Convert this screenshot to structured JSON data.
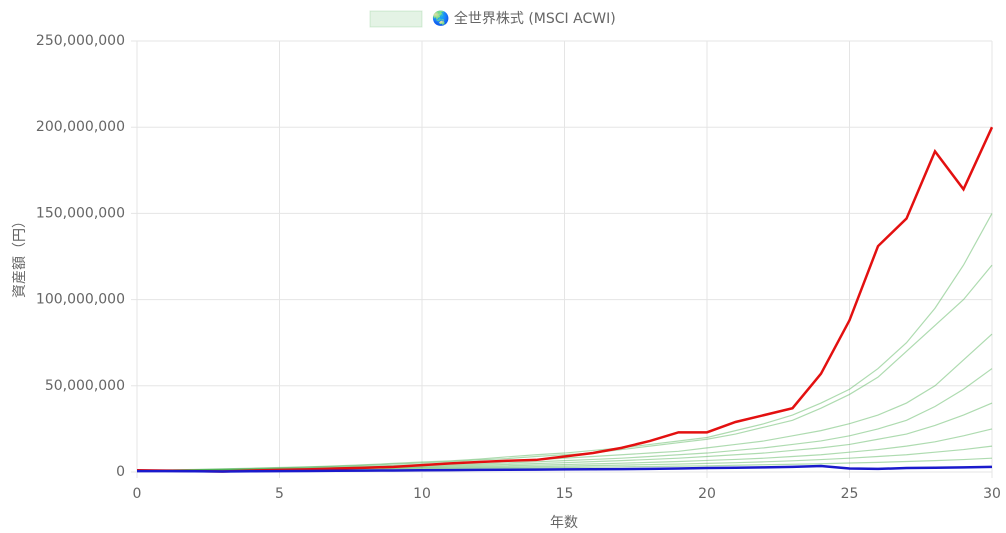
{
  "chart_data": {
    "type": "line",
    "x_label": "年数",
    "y_label": "資産額（円）",
    "x": [
      0,
      1,
      2,
      3,
      4,
      5,
      6,
      7,
      8,
      9,
      10,
      11,
      12,
      13,
      14,
      15,
      16,
      17,
      18,
      19,
      20,
      21,
      22,
      23,
      24,
      25,
      26,
      27,
      28,
      29,
      30
    ],
    "xlim": [
      0,
      30
    ],
    "xticks": [
      0,
      5,
      10,
      15,
      20,
      25,
      30
    ],
    "ylim": [
      0,
      250000000
    ],
    "yticks": [
      0,
      {
        "value": 50000000,
        "label": "50,000,000"
      },
      {
        "value": 100000000,
        "label": "100,000,000"
      },
      {
        "value": 150000000,
        "label": "150,000,000"
      },
      {
        "value": 200000000,
        "label": "200,000,000"
      },
      {
        "value": 250000000,
        "label": "250,000,000"
      }
    ],
    "grid": true,
    "legend": "top",
    "series": [
      {
        "name": "🌏 全世界株式 (MSCI ACWI)",
        "color": "#4caf50",
        "values": [
          1000000,
          1200000,
          1500000,
          1800000,
          2200000,
          2600000,
          3000000,
          3600000,
          4200000,
          5000000,
          5800000,
          6500000,
          7500000,
          8800000,
          10000000,
          11000000,
          12500000,
          14000000,
          16000000,
          18000000,
          20000000,
          24000000,
          28000000,
          33000000,
          40000000,
          48000000,
          60000000,
          75000000,
          95000000,
          120000000,
          150000000
        ]
      },
      {
        "color": "#4caf50",
        "values": [
          1000000,
          1100000,
          1300000,
          1700000,
          2000000,
          2400000,
          2900000,
          3300000,
          3900000,
          4600000,
          5200000,
          6000000,
          7000000,
          7800000,
          9000000,
          10000000,
          11000000,
          13000000,
          15000000,
          17000000,
          19000000,
          22000000,
          26000000,
          30000000,
          37000000,
          45000000,
          55000000,
          70000000,
          85000000,
          100000000,
          120000000
        ]
      },
      {
        "color": "#4caf50",
        "values": [
          1000000,
          1100000,
          1300000,
          1500000,
          1800000,
          2100000,
          2500000,
          2900000,
          3300000,
          3800000,
          4400000,
          5000000,
          5600000,
          6300000,
          7000000,
          8000000,
          9000000,
          10000000,
          11000000,
          12000000,
          14000000,
          16000000,
          18000000,
          21000000,
          24000000,
          28000000,
          33000000,
          40000000,
          50000000,
          65000000,
          80000000
        ]
      },
      {
        "color": "#4caf50",
        "values": [
          1000000,
          1000000,
          1200000,
          1400000,
          1600000,
          1900000,
          2200000,
          2500000,
          2900000,
          3300000,
          3800000,
          4200000,
          4700000,
          5300000,
          5900000,
          6600000,
          7300000,
          8000000,
          9000000,
          10000000,
          11000000,
          12500000,
          14000000,
          16000000,
          18000000,
          21000000,
          25000000,
          30000000,
          38000000,
          48000000,
          60000000
        ]
      },
      {
        "color": "#4caf50",
        "values": [
          1000000,
          1000000,
          1100000,
          1300000,
          1500000,
          1700000,
          2000000,
          2300000,
          2600000,
          2900000,
          3200000,
          3600000,
          4000000,
          4400000,
          4900000,
          5400000,
          6000000,
          6600000,
          7300000,
          8000000,
          9000000,
          10000000,
          11000000,
          12500000,
          14000000,
          16000000,
          19000000,
          22000000,
          27000000,
          33000000,
          40000000
        ]
      },
      {
        "color": "#4caf50",
        "values": [
          1000000,
          1000000,
          1100000,
          1200000,
          1400000,
          1600000,
          1800000,
          2000000,
          2200000,
          2500000,
          2700000,
          3000000,
          3300000,
          3600000,
          4000000,
          4300000,
          4700000,
          5100000,
          5600000,
          6100000,
          6700000,
          7300000,
          8000000,
          9000000,
          10000000,
          11500000,
          13000000,
          15000000,
          17500000,
          21000000,
          25000000
        ]
      },
      {
        "color": "#4caf50",
        "values": [
          1000000,
          1000000,
          1050000,
          1150000,
          1300000,
          1450000,
          1600000,
          1750000,
          1900000,
          2100000,
          2300000,
          2500000,
          2700000,
          2900000,
          3100000,
          3400000,
          3700000,
          4000000,
          4300000,
          4600000,
          5000000,
          5400000,
          5900000,
          6500000,
          7200000,
          8000000,
          9000000,
          10000000,
          11500000,
          13000000,
          15000000
        ]
      },
      {
        "color": "#4caf50",
        "values": [
          1000000,
          950000,
          1000000,
          1050000,
          1150000,
          1250000,
          1350000,
          1450000,
          1550000,
          1700000,
          1850000,
          2000000,
          2100000,
          2300000,
          2400000,
          2600000,
          2800000,
          3000000,
          3200000,
          3400000,
          3600000,
          3900000,
          4200000,
          4500000,
          4800000,
          5200000,
          5600000,
          6100000,
          6600000,
          7200000,
          8000000
        ]
      },
      {
        "color": "#e31010",
        "values": [
          1000000,
          800000,
          500000,
          300000,
          800000,
          1200000,
          1500000,
          2000000,
          2500000,
          3000000,
          4000000,
          5000000,
          5800000,
          6500000,
          7000000,
          9000000,
          11000000,
          14000000,
          18000000,
          23000000,
          23000000,
          29000000,
          33000000,
          37000000,
          57000000,
          88000000,
          131000000,
          147000000,
          186000000,
          164000000,
          200000000
        ]
      },
      {
        "color": "#1a1acc",
        "values": [
          500000,
          500000,
          400000,
          300000,
          400000,
          500000,
          600000,
          700000,
          800000,
          900000,
          1000000,
          1100000,
          1200000,
          1300000,
          1400000,
          1500000,
          1600000,
          1700000,
          1800000,
          2000000,
          2300000,
          2500000,
          2700000,
          3000000,
          3500000,
          2000000,
          1800000,
          2300000,
          2500000,
          2700000,
          3000000
        ]
      }
    ]
  }
}
